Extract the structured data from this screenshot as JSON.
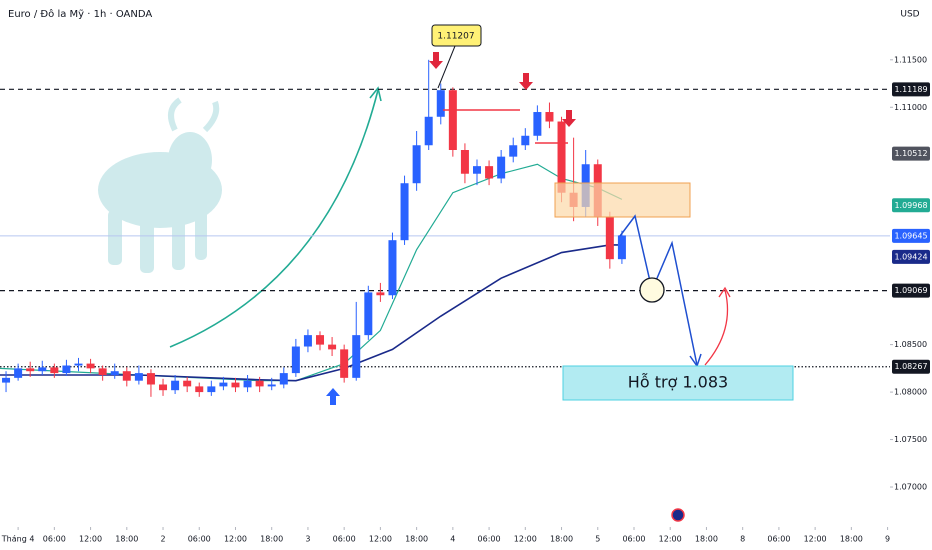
{
  "chart_data": {
    "type": "candlestick",
    "title": "Euro / Đô la Mỹ · 1h · OANDA",
    "currency": "USD",
    "x": [
      -2,
      0,
      2,
      4,
      6,
      8,
      10,
      12,
      14,
      16,
      18,
      20,
      22,
      24,
      26,
      28,
      30,
      32,
      34,
      36,
      38,
      40,
      42,
      44,
      46,
      48,
      50,
      52,
      54,
      56,
      58,
      60,
      62,
      64,
      66,
      68,
      70,
      72,
      74,
      76,
      78,
      80,
      82,
      84,
      86,
      88,
      90,
      92,
      94,
      96,
      98,
      100
    ],
    "open": [
      1.081,
      1.0815,
      1.0825,
      1.0822,
      1.0826,
      1.082,
      1.0828,
      1.083,
      1.0825,
      1.0818,
      1.0822,
      1.0812,
      1.082,
      1.0808,
      1.0802,
      1.0812,
      1.0806,
      1.08,
      1.0806,
      1.081,
      1.0805,
      1.0812,
      1.0806,
      1.0808,
      1.082,
      1.0848,
      1.086,
      1.085,
      1.0845,
      1.0815,
      1.086,
      1.0905,
      1.0902,
      1.096,
      1.102,
      1.106,
      1.109,
      1.1118,
      1.1055,
      1.103,
      1.1038,
      1.1025,
      1.1048,
      1.106,
      1.107,
      1.1095,
      1.1085,
      1.101,
      1.0995,
      1.104,
      1.0985,
      1.094
    ],
    "high": [
      1.0822,
      1.083,
      1.0832,
      1.0833,
      1.083,
      1.0834,
      1.0836,
      1.0835,
      1.0828,
      1.083,
      1.0826,
      1.0828,
      1.0824,
      1.0814,
      1.0818,
      1.0816,
      1.081,
      1.0812,
      1.0816,
      1.0815,
      1.0818,
      1.0816,
      1.0815,
      1.0826,
      1.0856,
      1.0866,
      1.0864,
      1.0858,
      1.085,
      1.0895,
      1.0912,
      1.0915,
      1.0968,
      1.1028,
      1.1075,
      1.115,
      1.1125,
      1.1121,
      1.1062,
      1.1045,
      1.1044,
      1.1055,
      1.1068,
      1.1078,
      1.1102,
      1.1105,
      1.109,
      1.1068,
      1.1055,
      1.1045,
      1.099,
      1.097
    ],
    "low": [
      1.08,
      1.0812,
      1.0816,
      1.0818,
      1.0815,
      1.0817,
      1.0822,
      1.082,
      1.0812,
      1.0814,
      1.0806,
      1.0808,
      1.0795,
      1.0796,
      1.0798,
      1.08,
      1.0795,
      1.0796,
      1.0802,
      1.08,
      1.08,
      1.08,
      1.0802,
      1.0804,
      1.0816,
      1.0842,
      1.0844,
      1.0838,
      1.081,
      1.0812,
      1.0855,
      1.0895,
      1.0898,
      1.0955,
      1.1012,
      1.1055,
      1.1082,
      1.1048,
      1.102,
      1.1018,
      1.1018,
      1.102,
      1.1042,
      1.1055,
      1.1065,
      1.1078,
      1.1,
      1.098,
      1.0985,
      1.0975,
      1.093,
      1.0935
    ],
    "close": [
      1.0815,
      1.0825,
      1.0822,
      1.0826,
      1.082,
      1.0828,
      1.083,
      1.0825,
      1.0818,
      1.0822,
      1.0812,
      1.082,
      1.0808,
      1.0802,
      1.0812,
      1.0806,
      1.08,
      1.0806,
      1.081,
      1.0805,
      1.0812,
      1.0806,
      1.0808,
      1.082,
      1.0848,
      1.086,
      1.085,
      1.0845,
      1.0815,
      1.086,
      1.0905,
      1.0902,
      1.096,
      1.102,
      1.106,
      1.109,
      1.1118,
      1.1055,
      1.103,
      1.1038,
      1.1025,
      1.1048,
      1.106,
      1.107,
      1.1095,
      1.1085,
      1.101,
      1.0995,
      1.104,
      1.0985,
      1.094,
      1.0965
    ],
    "up_color": "#2962ff",
    "down_color": "#f23645",
    "lines": [
      {
        "color": "#22ab94",
        "x": [
          -3,
          20,
          40,
          46,
          54,
          60,
          66,
          72,
          80,
          86,
          90,
          96,
          100
        ],
        "values": [
          1.0825,
          1.0818,
          1.0812,
          1.0812,
          1.083,
          1.0865,
          1.095,
          1.101,
          1.103,
          1.104,
          1.1025,
          1.1015,
          1.1003
        ]
      },
      {
        "color": "#1a2a8a",
        "x": [
          -3,
          20,
          40,
          46,
          54,
          62,
          70,
          80,
          90,
          98,
          100
        ],
        "values": [
          1.0818,
          1.0818,
          1.0813,
          1.0812,
          1.0825,
          1.0845,
          1.088,
          1.092,
          1.0947,
          1.0955,
          1.0955
        ]
      }
    ],
    "xlim": [
      -3,
      144.4
    ],
    "ylim": [
      1.066,
      1.1213
    ],
    "xticks": [
      {
        "value": 0,
        "label": "Tháng 4"
      },
      {
        "value": 6,
        "label": "06:00"
      },
      {
        "value": 12,
        "label": "12:00"
      },
      {
        "value": 18,
        "label": "18:00"
      },
      {
        "value": 24,
        "label": "2"
      },
      {
        "value": 30,
        "label": "06:00"
      },
      {
        "value": 36,
        "label": "12:00"
      },
      {
        "value": 42,
        "label": "18:00"
      },
      {
        "value": 48,
        "label": "3"
      },
      {
        "value": 54,
        "label": "06:00"
      },
      {
        "value": 60,
        "label": "12:00"
      },
      {
        "value": 66,
        "label": "18:00"
      },
      {
        "value": 72,
        "label": "4"
      },
      {
        "value": 78,
        "label": "06:00"
      },
      {
        "value": 84,
        "label": "12:00"
      },
      {
        "value": 90,
        "label": "18:00"
      },
      {
        "value": 96,
        "label": "5"
      },
      {
        "value": 102,
        "label": "06:00"
      },
      {
        "value": 108,
        "label": "12:00"
      },
      {
        "value": 114,
        "label": "18:00"
      },
      {
        "value": 120,
        "label": "8"
      },
      {
        "value": 126,
        "label": "06:00"
      },
      {
        "value": 132,
        "label": "12:00"
      },
      {
        "value": 138,
        "label": "18:00"
      },
      {
        "value": 144,
        "label": "9"
      }
    ],
    "yticks": [
      {
        "value": 1.115,
        "label": "1.11500"
      },
      {
        "value": 1.11,
        "label": "1.11000"
      },
      {
        "value": 1.085,
        "label": "1.08500"
      },
      {
        "value": 1.08,
        "label": "1.08000"
      },
      {
        "value": 1.075,
        "label": "1.07500"
      },
      {
        "value": 1.07,
        "label": "1.07000"
      }
    ],
    "price_labels": [
      {
        "value": 1.11189,
        "color": "#131722",
        "line": "dashed"
      },
      {
        "value": 1.10512,
        "color": "#50535e"
      },
      {
        "value": 1.09968,
        "color": "#22ab94"
      },
      {
        "value": 1.09645,
        "color": "#2962ff",
        "line": "solid"
      },
      {
        "value": 1.09424,
        "color": "#1a2a8a"
      },
      {
        "value": 1.09069,
        "color": "#131722",
        "line": "dashed"
      },
      {
        "value": 1.08267,
        "color": "#131722",
        "line": "dotted"
      }
    ],
    "annotations": [
      "1.11207",
      "Hỗ trợ 1.083"
    ]
  }
}
